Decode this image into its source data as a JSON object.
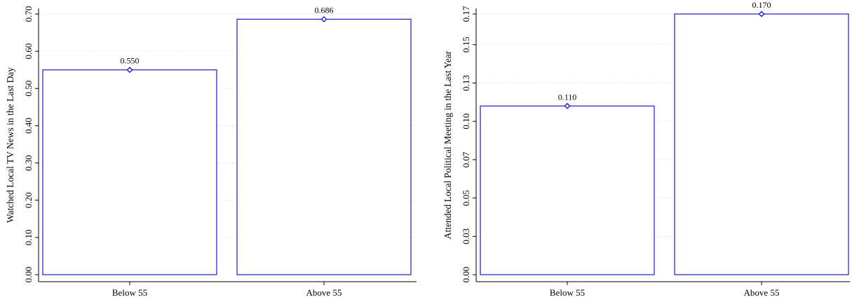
{
  "chart_data": [
    {
      "type": "bar",
      "categories": [
        "Below 55",
        "Above 55"
      ],
      "values": [
        0.55,
        0.686
      ],
      "data_labels": [
        "0.550",
        "0.686"
      ],
      "title": "",
      "xlabel": "",
      "ylabel": "Watched Local TV News in the Last Day",
      "ylim": [
        0,
        0.7
      ],
      "yticks": [
        0,
        0.1,
        0.2,
        0.3,
        0.4,
        0.5,
        0.6,
        0.7
      ],
      "ytick_labels": [
        "0.00",
        "0.10",
        "0.20",
        "0.30",
        "0.40",
        "0.50",
        "0.60",
        "0.70"
      ],
      "grid": true,
      "bar_color": "#1a1acc",
      "marker": "diamond"
    },
    {
      "type": "bar",
      "categories": [
        "Below 55",
        "Above 55"
      ],
      "values": [
        0.11,
        0.17
      ],
      "data_labels": [
        "0.110",
        "0.170"
      ],
      "title": "",
      "xlabel": "",
      "ylabel": "Attended Local Political Meeting in the Last Year",
      "ylim": [
        0,
        0.17
      ],
      "yticks": [
        0,
        0.025,
        0.05,
        0.075,
        0.1,
        0.125,
        0.15,
        0.17
      ],
      "ytick_labels": [
        "0.00",
        "0.03",
        "0.05",
        "0.07",
        "0.10",
        "0.13",
        "0.15",
        "0.17"
      ],
      "grid": true,
      "bar_color": "#1a1acc",
      "marker": "diamond"
    }
  ]
}
